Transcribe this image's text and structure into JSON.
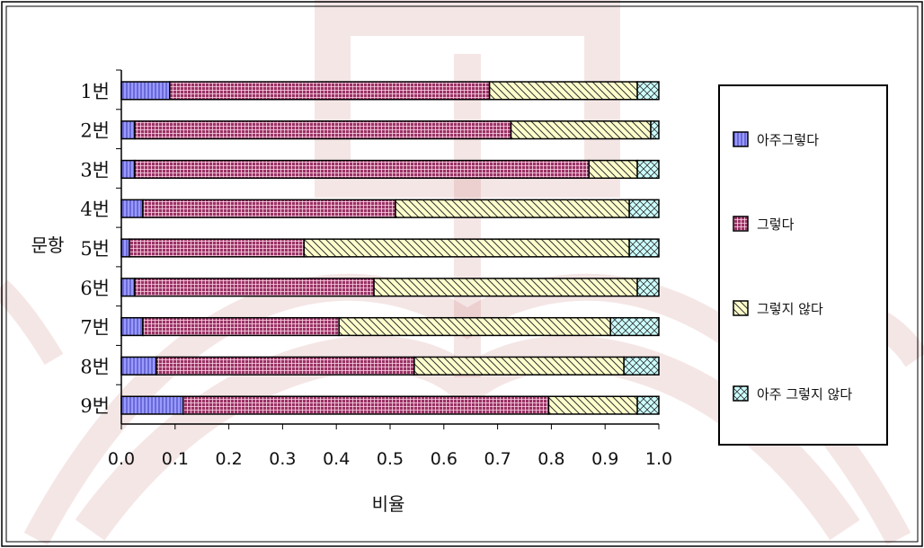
{
  "chart_data": {
    "type": "bar",
    "orientation": "horizontal",
    "stacked": "100%",
    "title": "",
    "xlabel": "비율",
    "ylabel": "문항",
    "xlim": [
      0,
      1
    ],
    "xticks": [
      "0.0",
      "0.1",
      "0.2",
      "0.3",
      "0.4",
      "0.5",
      "0.6",
      "0.7",
      "0.8",
      "0.9",
      "1.0"
    ],
    "categories": [
      "1번",
      "2번",
      "3번",
      "4번",
      "5번",
      "6번",
      "7번",
      "8번",
      "9번"
    ],
    "series": [
      {
        "name": "아주그렇다",
        "color": "#9a9aff",
        "pattern": "vertical-lines",
        "values": [
          0.09,
          0.025,
          0.025,
          0.04,
          0.015,
          0.025,
          0.04,
          0.065,
          0.115
        ]
      },
      {
        "name": "그렇다",
        "color": "#993366",
        "pattern": "grid",
        "values": [
          0.595,
          0.7,
          0.845,
          0.47,
          0.325,
          0.445,
          0.365,
          0.48,
          0.68
        ]
      },
      {
        "name": "그렇지 않다",
        "color": "#ffffcc",
        "pattern": "diagonal",
        "values": [
          0.275,
          0.26,
          0.09,
          0.435,
          0.605,
          0.49,
          0.505,
          0.39,
          0.165
        ]
      },
      {
        "name": "아주 그렇지 않다",
        "color": "#ccffff",
        "pattern": "crosshatch",
        "values": [
          0.04,
          0.015,
          0.04,
          0.055,
          0.055,
          0.04,
          0.09,
          0.065,
          0.04
        ]
      }
    ],
    "grid": false,
    "legend_position": "right"
  }
}
